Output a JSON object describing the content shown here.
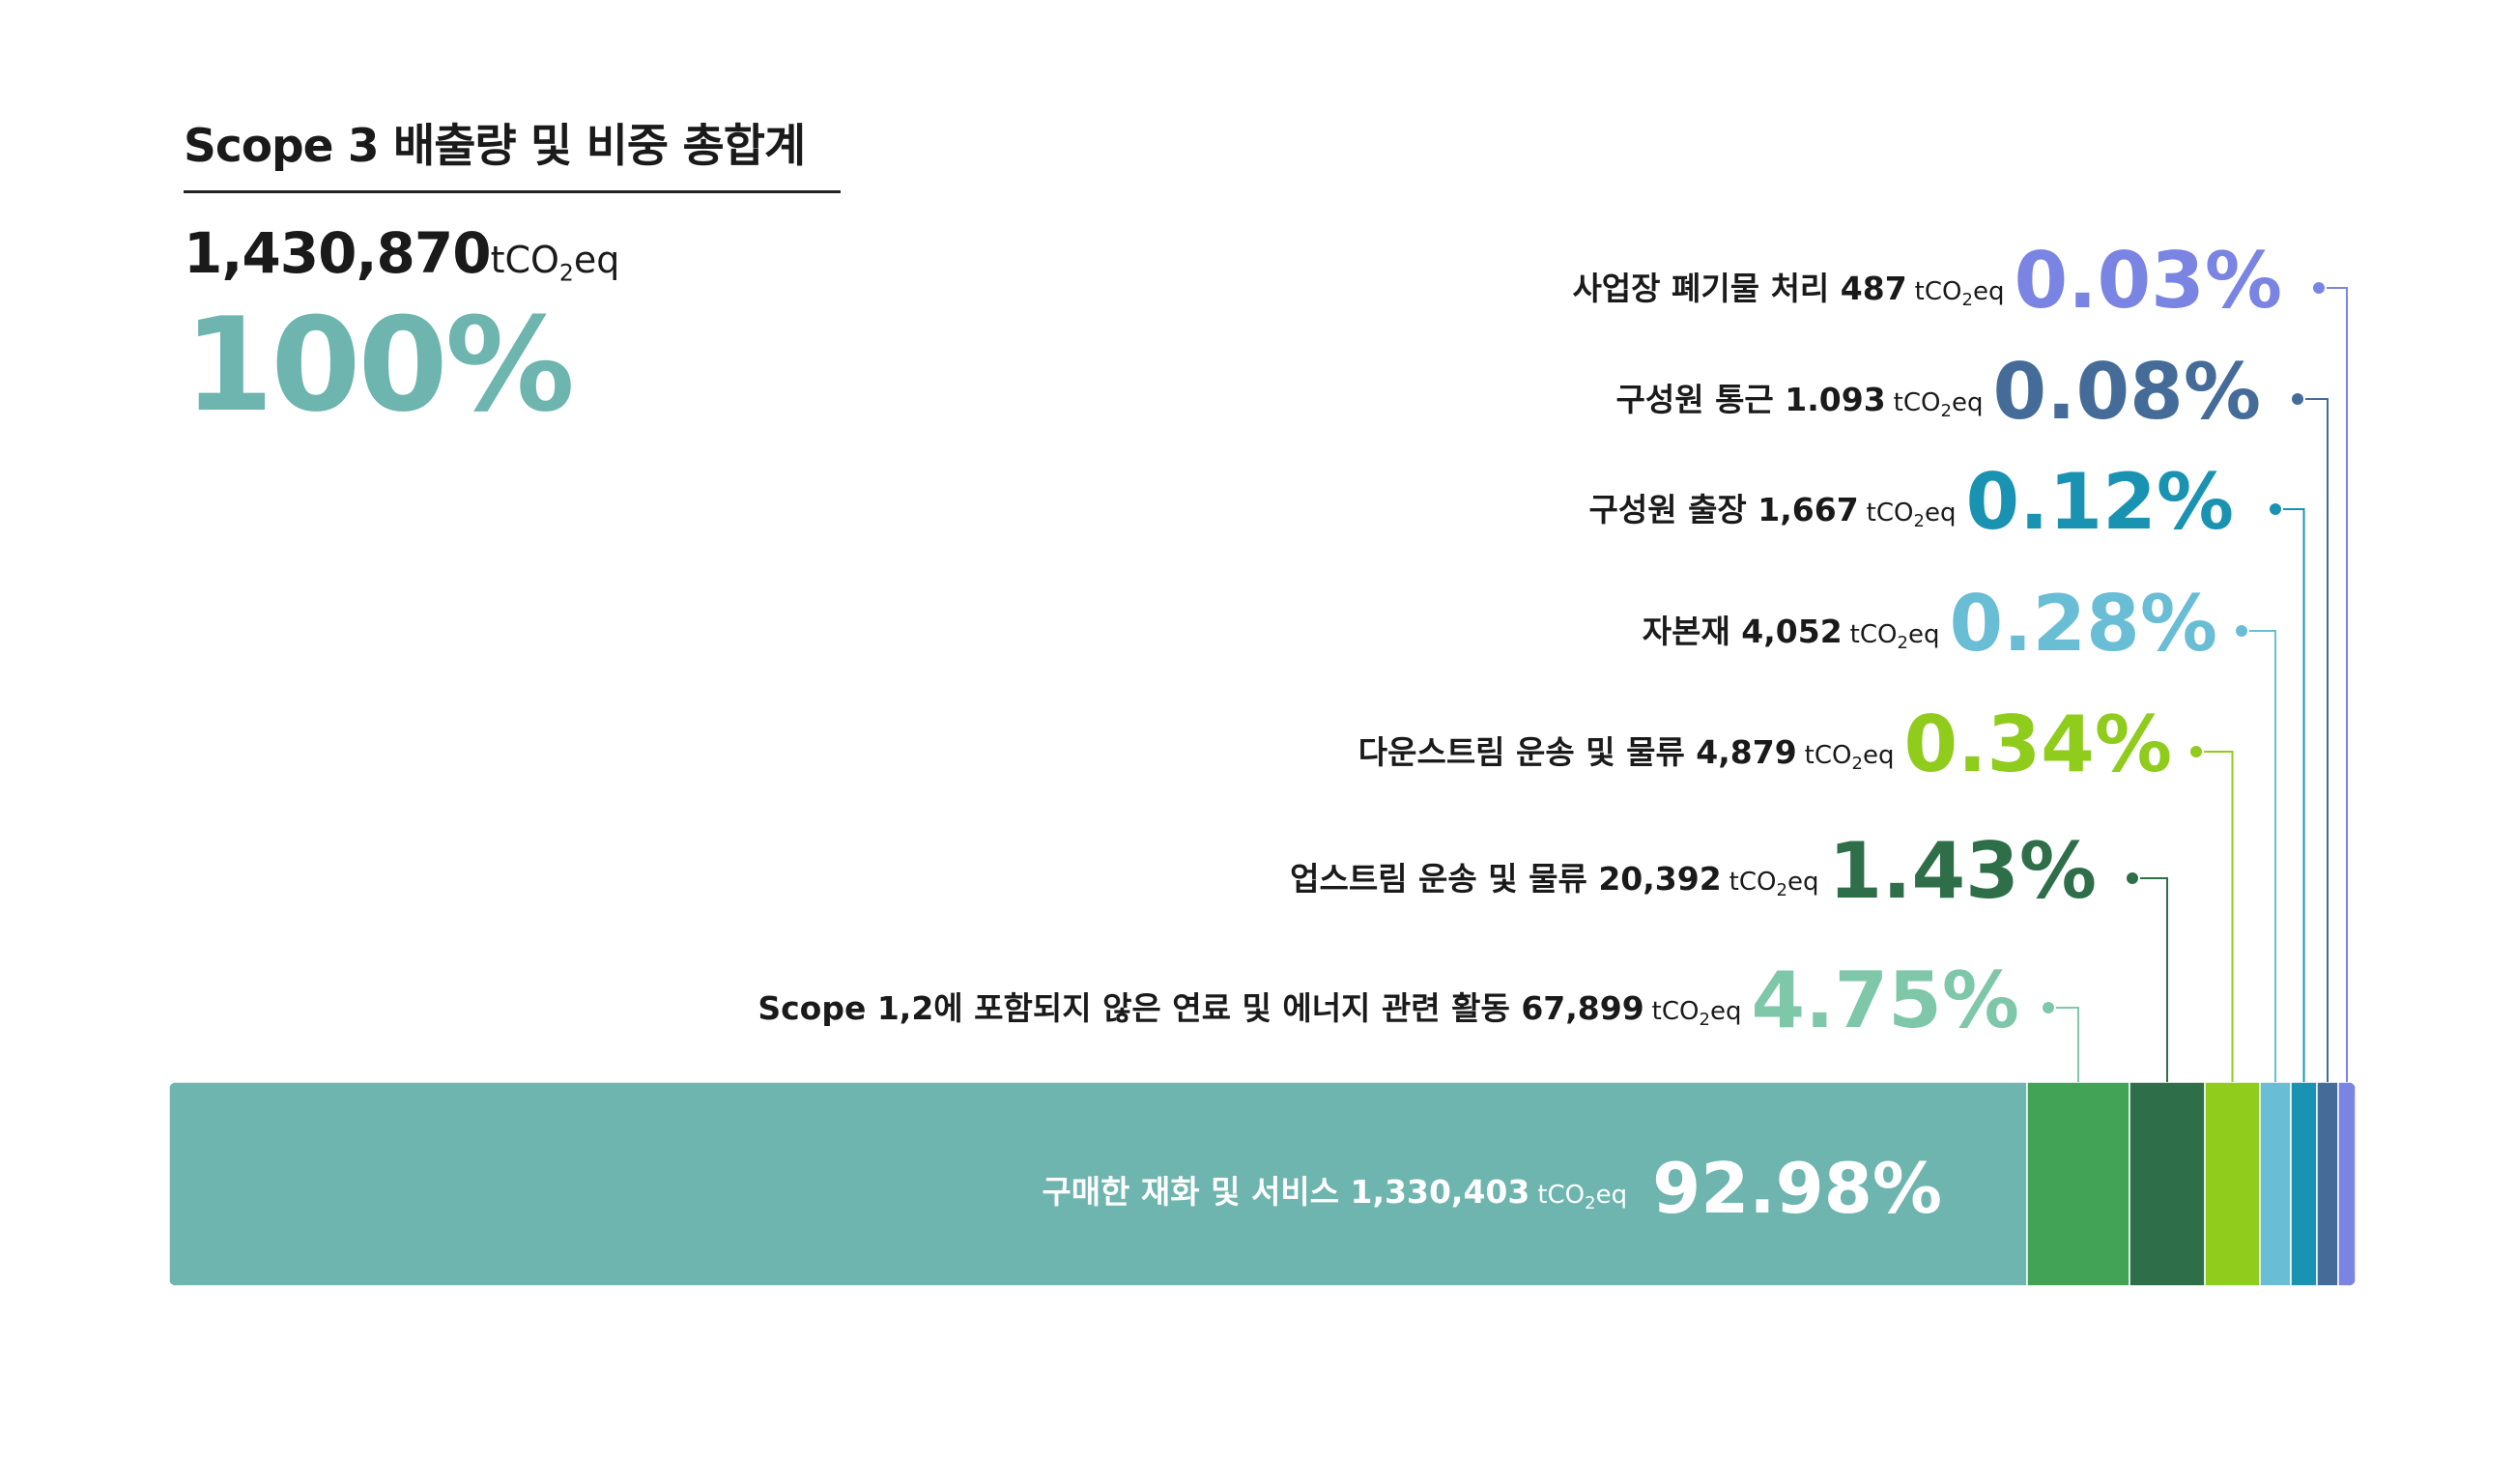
{
  "title": "Scope 3 배출량 및 비중 총합계",
  "total": {
    "value": "1,430,870",
    "unit_main": "tCO",
    "unit_sub": "2",
    "unit_tail": "eq",
    "percent": "100%",
    "percent_color": "#6db5ae"
  },
  "chart_data": {
    "type": "bar",
    "orientation": "horizontal-stacked",
    "unit": "tCO2eq",
    "categories": [
      "구매한 재화 및 서비스",
      "Scope 1,2에 포함되지 않은 연료 및 에너지 관련 활동",
      "업스트림 운송 및 물류",
      "다운스트림 운송 및 물류",
      "자본재",
      "구성원 출장",
      "구성원 통근",
      "사업장 폐기물 처리"
    ],
    "values": [
      1330403,
      67899,
      20392,
      4879,
      4052,
      1667,
      1093,
      487
    ],
    "value_labels": [
      "1,330,403",
      "67,899",
      "20,392",
      "4,879",
      "4,052",
      "1,667",
      "1.093",
      "487"
    ],
    "percents": [
      92.98,
      4.75,
      1.43,
      0.34,
      0.28,
      0.12,
      0.08,
      0.03
    ],
    "percent_labels": [
      "92.98%",
      "4.75%",
      "1.43%",
      "0.34%",
      "0.28%",
      "0.12%",
      "0.08%",
      "0.03%"
    ],
    "colors": [
      "#6db5ae",
      "#42a356",
      "#2e6e48",
      "#8fcc1c",
      "#69bdd4",
      "#1a93b3",
      "#456c99",
      "#7a84e3"
    ],
    "label_colors": [
      "#ffffff",
      "#7fc7a9",
      "#2e6e48",
      "#8fcc1c",
      "#69bdd4",
      "#1a93b3",
      "#456c99",
      "#7a84e3"
    ]
  }
}
